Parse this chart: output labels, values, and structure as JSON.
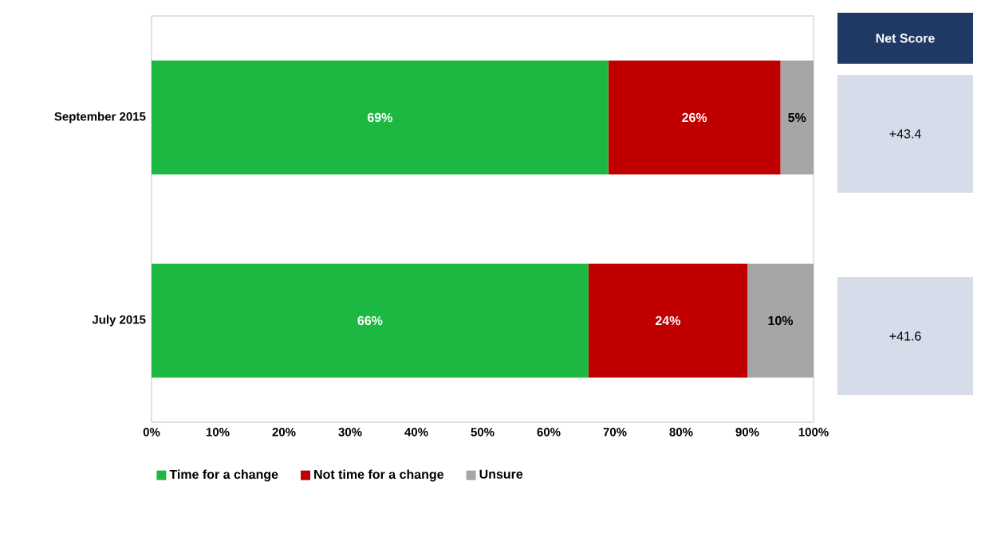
{
  "chart_data": {
    "type": "bar",
    "orientation": "horizontal",
    "stacked": true,
    "categories": [
      "September 2015",
      "July 2015"
    ],
    "series": [
      {
        "name": "Time for a change",
        "color": "#1db842",
        "values": [
          69,
          66
        ],
        "value_labels": [
          "69%",
          "66%"
        ]
      },
      {
        "name": "Not time for a change",
        "color": "#c00000",
        "values": [
          26,
          24
        ],
        "value_labels": [
          "26%",
          "24%"
        ]
      },
      {
        "name": "Unsure",
        "color": "#a6a6a6",
        "values": [
          5,
          10
        ],
        "value_labels": [
          "5%",
          "10%"
        ]
      }
    ],
    "xlim": [
      0,
      100
    ],
    "xticks": [
      {
        "value": 0,
        "label": "0%"
      },
      {
        "value": 10,
        "label": "10%"
      },
      {
        "value": 20,
        "label": "20%"
      },
      {
        "value": 30,
        "label": "30%"
      },
      {
        "value": 40,
        "label": "40%"
      },
      {
        "value": 50,
        "label": "50%"
      },
      {
        "value": 60,
        "label": "60%"
      },
      {
        "value": 70,
        "label": "70%"
      },
      {
        "value": 80,
        "label": "80%"
      },
      {
        "value": 90,
        "label": "90%"
      },
      {
        "value": 100,
        "label": "100%"
      }
    ],
    "legend": "bottom left",
    "annotations": [
      "Net Score",
      "+43.4",
      "+41.6"
    ]
  }
}
